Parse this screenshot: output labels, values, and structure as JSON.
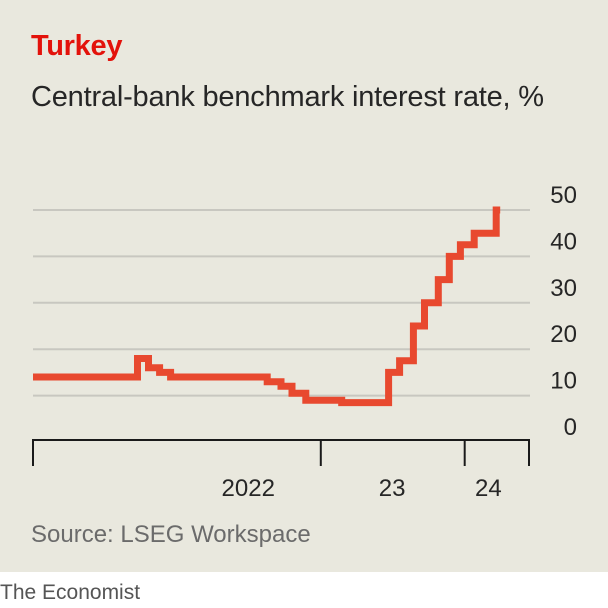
{
  "title": "Turkey",
  "subtitle": "Central-bank benchmark interest rate, %",
  "source": "Source: LSEG Workspace",
  "brand": "The Economist",
  "colors": {
    "line": "#e8492f",
    "title": "#e3120b",
    "background": "#e9e8de",
    "grid": "#c8c7c0"
  },
  "chart_data": {
    "type": "line",
    "step": true,
    "title": "Turkey",
    "subtitle": "Central-bank benchmark interest rate, %",
    "xlabel": "",
    "ylabel": "%",
    "ylim": [
      0,
      50
    ],
    "yticks": [
      0,
      10,
      20,
      30,
      40,
      50
    ],
    "ytick_position": "right",
    "xlim": [
      "2021-01-01",
      "2024-04-30"
    ],
    "xtick_labels": [
      {
        "label": "2022",
        "x": "2022-07-01"
      },
      {
        "label": "23",
        "x": "2023-07-01"
      },
      {
        "label": "24",
        "x": "2024-03-01"
      }
    ],
    "year_boundaries": [
      "2021-01-01",
      "2023-01-01",
      "2024-01-01",
      "2024-12-31"
    ],
    "grid": true,
    "series": [
      {
        "name": "",
        "points": [
          {
            "x": "2021-01-01",
            "y": 14
          },
          {
            "x": "2021-09-23",
            "y": 18
          },
          {
            "x": "2021-10-21",
            "y": 16
          },
          {
            "x": "2021-11-18",
            "y": 15
          },
          {
            "x": "2021-12-16",
            "y": 14
          },
          {
            "x": "2022-08-18",
            "y": 13
          },
          {
            "x": "2022-09-22",
            "y": 12
          },
          {
            "x": "2022-10-20",
            "y": 10.5
          },
          {
            "x": "2022-11-24",
            "y": 9
          },
          {
            "x": "2023-02-23",
            "y": 8.5
          },
          {
            "x": "2023-06-22",
            "y": 15
          },
          {
            "x": "2023-07-20",
            "y": 17.5
          },
          {
            "x": "2023-08-24",
            "y": 25
          },
          {
            "x": "2023-09-21",
            "y": 30
          },
          {
            "x": "2023-10-26",
            "y": 35
          },
          {
            "x": "2023-11-23",
            "y": 40
          },
          {
            "x": "2023-12-21",
            "y": 42.5
          },
          {
            "x": "2024-01-25",
            "y": 45
          },
          {
            "x": "2024-03-21",
            "y": 50
          },
          {
            "x": "2024-03-31",
            "y": 50
          }
        ]
      }
    ]
  }
}
